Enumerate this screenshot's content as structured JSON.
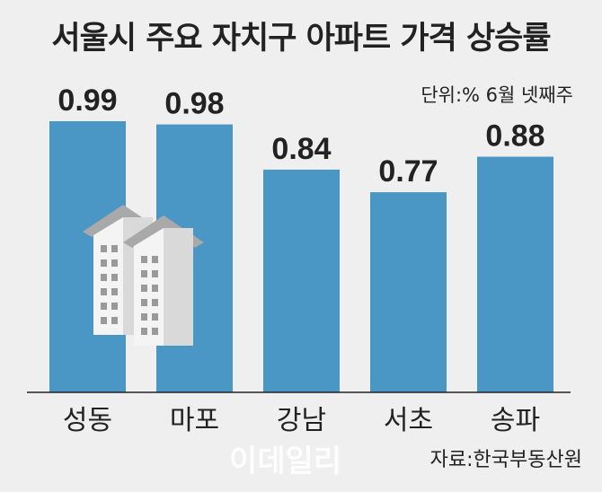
{
  "chart_data": {
    "type": "bar",
    "title": "서울시 주요 자치구 아파트 가격 상승률",
    "subtitle": "단위:%  6월 넷째주",
    "categories": [
      "성동",
      "마포",
      "강남",
      "서초",
      "송파"
    ],
    "values": [
      0.99,
      0.98,
      0.84,
      0.77,
      0.88
    ],
    "data_labels": [
      "0.99",
      "0.98",
      "0.84",
      "0.77",
      "0.88"
    ],
    "ylim": [
      0.15,
      1.0
    ],
    "grid": false,
    "bar_color": "#4a96c4",
    "source": "자료:한국부동산원",
    "watermark": "이데일리"
  }
}
